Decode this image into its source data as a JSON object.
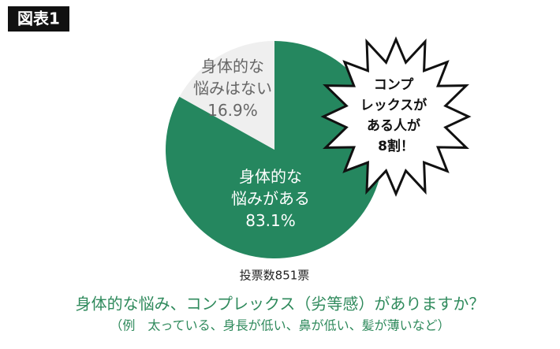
{
  "chart_data": {
    "type": "pie",
    "badge": "図表1",
    "categories": [
      [
        "身体的な",
        "悩みがある"
      ],
      [
        "身体的な",
        "悩みはない"
      ]
    ],
    "values": [
      83.1,
      16.9
    ],
    "value_labels": [
      "83.1%",
      "16.9%"
    ],
    "colors": [
      "#25875f",
      "#efefef"
    ],
    "label_colors": [
      "#ffffff",
      "#666666"
    ],
    "callout": [
      "コンプ",
      "レックスが",
      "ある人が",
      "8割！"
    ],
    "note": "投票数851票",
    "title": "身体的な悩み、コンプレックス（劣等感）がありますか？",
    "subtitle": "（例　太っている、身長が低い、鼻が低い、髪が薄いなど）"
  }
}
